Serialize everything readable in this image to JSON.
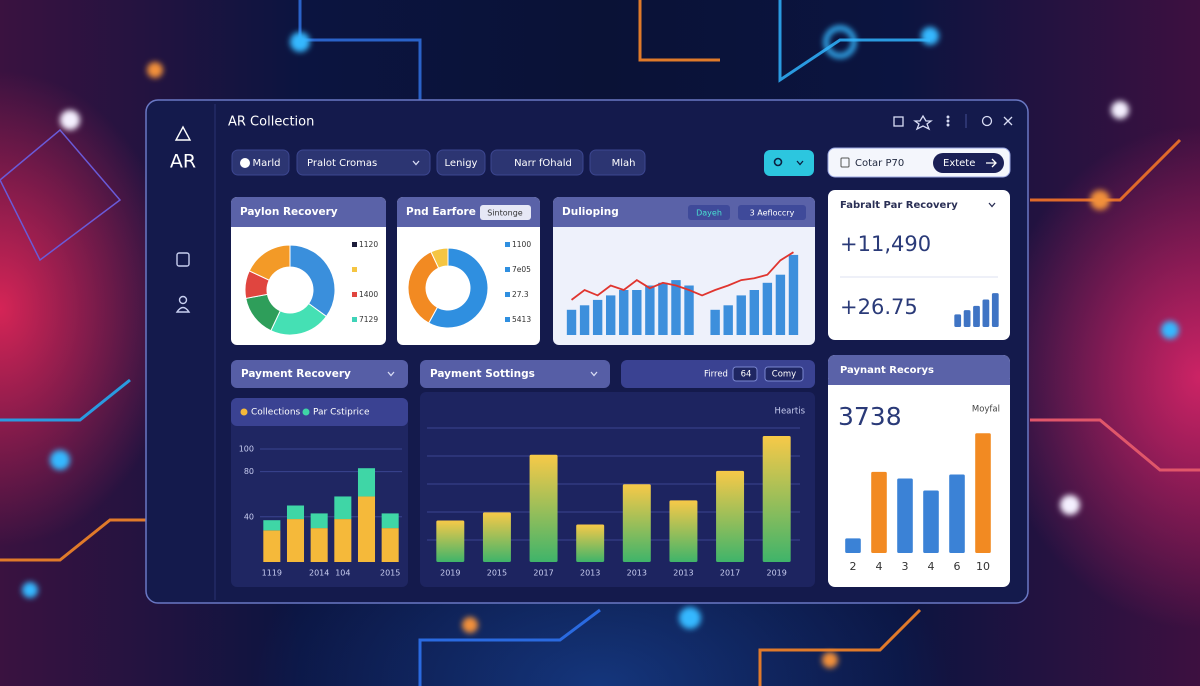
{
  "window": {
    "title": "AR Collection",
    "logo": "AR"
  },
  "toolbar": {
    "items": [
      "Marld",
      "Pralot Cromas",
      "Lenigy",
      "Narr fOhald",
      "Mlah"
    ],
    "search_field": "Cotar P70",
    "search_button": "Extete"
  },
  "chart_data": [
    {
      "type": "donut",
      "title": "Paylon Recovery",
      "values": [
        35,
        22,
        15,
        10,
        18
      ],
      "colors": [
        "#3a8fdc",
        "#45e0b4",
        "#2e9e5a",
        "#e0453f",
        "#f39a27"
      ],
      "legend": [
        {
          "label": "1120",
          "color": "#1c1c3a"
        },
        {
          "color": "#f5c542"
        },
        {
          "label": "1400",
          "color": "#e0453f"
        },
        {
          "label": "7129",
          "color": "#3fd3b8"
        }
      ]
    },
    {
      "type": "donut",
      "title": "Pnd Earfore",
      "button": "Sintonge",
      "values": [
        58,
        35,
        7
      ],
      "colors": [
        "#2f8fe0",
        "#f28a22",
        "#f5c542"
      ],
      "legend": [
        {
          "label": "1100",
          "color": "#2f8fe0"
        },
        {
          "label": "7e05",
          "color": "#2f8fe0"
        },
        {
          "label": "27.3",
          "color": "#2f8fe0"
        },
        {
          "label": "5413",
          "color": "#2f8fe0"
        }
      ]
    },
    {
      "type": "bar",
      "title": "Dulioping",
      "buttons": [
        "Dayeh",
        "3 Aefloccry"
      ],
      "ylim": [
        0,
        100
      ],
      "series": [
        {
          "type": "bar",
          "color": "#3d8fdc",
          "values": [
            28,
            33,
            39,
            44,
            50,
            50,
            55,
            58,
            61,
            55,
            null,
            28,
            33,
            44,
            50,
            58,
            67,
            89
          ]
        },
        {
          "type": "line",
          "color": "#e0352f",
          "values": [
            39,
            50,
            44,
            55,
            50,
            61,
            52,
            58,
            55,
            50,
            44,
            50,
            55,
            61,
            63,
            67,
            83,
            92
          ]
        }
      ]
    },
    {
      "type": "bar",
      "title": "Fabralt Par Recovery",
      "kpis": [
        "+11,490",
        "+26.75"
      ],
      "values": [
        12,
        16,
        20,
        26,
        32
      ],
      "color": "#3f74c4",
      "ylim": [
        0,
        35
      ]
    },
    {
      "type": "bar",
      "title": "Payment Recovery",
      "ylim": [
        0,
        100
      ],
      "yticks": [
        100,
        80,
        40
      ],
      "grid": true,
      "stacked": true,
      "categories": [
        "1119",
        null,
        "2014",
        "104",
        null,
        "2015"
      ],
      "series": [
        {
          "name": "Collections",
          "color": "#f5b93a",
          "values": [
            28,
            38,
            30,
            38,
            58,
            30
          ]
        },
        {
          "name": "Par Cstiprice",
          "color": "#3fd6a6",
          "values": [
            9,
            12,
            13,
            20,
            25,
            13
          ]
        }
      ]
    },
    {
      "type": "bar",
      "title": "Payment Sottings",
      "controls": [
        "Firred",
        "64",
        "Comy"
      ],
      "annotation": "Heartis",
      "ylim": [
        0,
        100
      ],
      "grid": true,
      "gradient": [
        "#f7c948",
        "#3fb46a"
      ],
      "categories": [
        "2019",
        "2015",
        "2017",
        "2013",
        "2013",
        "2013",
        "2017",
        "2019"
      ],
      "values": [
        31,
        37,
        80,
        28,
        58,
        46,
        68,
        94
      ]
    },
    {
      "type": "bar",
      "title": "Paynant Recorys",
      "headline": "3738",
      "annotation": "Moyfal",
      "ylim": [
        0,
        100
      ],
      "categories": [
        "2",
        "4",
        "3",
        "4",
        "6",
        "10"
      ],
      "values": [
        11,
        61,
        56,
        47,
        59,
        90
      ],
      "colors": [
        "#3b82d6",
        "#f28a22",
        "#3b82d6",
        "#3b82d6",
        "#3b82d6",
        "#f28a22"
      ]
    }
  ]
}
